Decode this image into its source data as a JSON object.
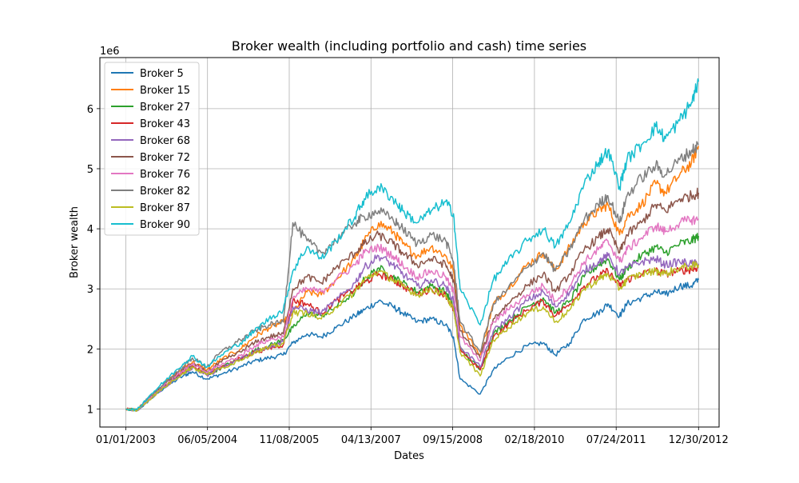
{
  "chart_data": {
    "type": "line",
    "title": "Broker wealth (including portfolio and cash) time series",
    "xlabel": "Dates",
    "ylabel": "Broker wealth",
    "y_scale_label": "1e6",
    "x_ticks": [
      "01/01/2003",
      "06/05/2004",
      "11/08/2005",
      "04/13/2007",
      "09/15/2008",
      "02/18/2010",
      "07/24/2011",
      "12/30/2012"
    ],
    "y_ticks": [
      "1",
      "2",
      "3",
      "4",
      "5",
      "6"
    ],
    "xlim": [
      "2002-07-20",
      "2013-05-10"
    ],
    "ylim": [
      700000,
      6850000
    ],
    "grid": true,
    "legend_position": "upper-left",
    "dates": [
      "2003-01-01",
      "2003-03-15",
      "2003-06-01",
      "2003-09-01",
      "2004-01-01",
      "2004-03-01",
      "2004-06-01",
      "2004-09-01",
      "2005-01-01",
      "2005-04-01",
      "2005-07-01",
      "2005-10-01",
      "2005-12-01",
      "2006-03-01",
      "2006-06-01",
      "2006-09-01",
      "2007-01-01",
      "2007-03-01",
      "2007-06-01",
      "2007-09-01",
      "2007-11-01",
      "2008-02-01",
      "2008-05-01",
      "2008-08-01",
      "2008-09-20",
      "2008-11-01",
      "2009-03-09",
      "2009-06-01",
      "2009-09-01",
      "2010-01-01",
      "2010-04-15",
      "2010-07-01",
      "2010-10-01",
      "2011-01-01",
      "2011-04-01",
      "2011-06-01",
      "2011-08-15",
      "2011-10-01",
      "2012-01-01",
      "2012-04-01",
      "2012-06-01",
      "2012-09-01",
      "2012-11-15",
      "2012-12-30"
    ],
    "series": [
      {
        "name": "Broker 5",
        "color": "#1f77b4",
        "values": [
          1000000,
          970000,
          1150000,
          1350000,
          1550000,
          1620000,
          1500000,
          1580000,
          1700000,
          1800000,
          1850000,
          1900000,
          2100000,
          2250000,
          2200000,
          2350000,
          2550000,
          2650000,
          2800000,
          2700000,
          2600000,
          2450000,
          2500000,
          2400000,
          2200000,
          1500000,
          1250000,
          1650000,
          1850000,
          2050000,
          2100000,
          1900000,
          2100000,
          2500000,
          2600000,
          2750000,
          2550000,
          2750000,
          2850000,
          2950000,
          2900000,
          3050000,
          3050000,
          3150000
        ]
      },
      {
        "name": "Broker 15",
        "color": "#ff7f0e",
        "values": [
          1000000,
          990000,
          1200000,
          1420000,
          1680000,
          1780000,
          1650000,
          1820000,
          2000000,
          2200000,
          2350000,
          2450000,
          2600000,
          2950000,
          2900000,
          3150000,
          3500000,
          3800000,
          4100000,
          3950000,
          3750000,
          3550000,
          3700000,
          3550000,
          3300000,
          2400000,
          1900000,
          2750000,
          3000000,
          3400000,
          3600000,
          3300000,
          3700000,
          4100000,
          4300000,
          4400000,
          3900000,
          4200000,
          4400000,
          4750000,
          4600000,
          4900000,
          5100000,
          5380000
        ]
      },
      {
        "name": "Broker 27",
        "color": "#2ca02c",
        "values": [
          1000000,
          980000,
          1180000,
          1380000,
          1600000,
          1700000,
          1570000,
          1690000,
          1830000,
          1970000,
          2050000,
          2150000,
          2350000,
          2600000,
          2550000,
          2700000,
          2950000,
          3150000,
          3350000,
          3200000,
          3100000,
          2950000,
          3050000,
          2950000,
          2700000,
          2000000,
          1650000,
          2250000,
          2450000,
          2700000,
          2850000,
          2600000,
          2800000,
          3200000,
          3400000,
          3500000,
          3150000,
          3350000,
          3550000,
          3700000,
          3600000,
          3750000,
          3800000,
          3880000
        ]
      },
      {
        "name": "Broker 43",
        "color": "#d62728",
        "values": [
          1000000,
          985000,
          1170000,
          1370000,
          1620000,
          1720000,
          1580000,
          1700000,
          1840000,
          1950000,
          2010000,
          2070000,
          2800000,
          2750000,
          2600000,
          2800000,
          3000000,
          3100000,
          3250000,
          3150000,
          3050000,
          2900000,
          3000000,
          2900000,
          2650000,
          2000000,
          1650000,
          2200000,
          2400000,
          2650000,
          2800000,
          2550000,
          2750000,
          3050000,
          3200000,
          3300000,
          3050000,
          3150000,
          3250000,
          3300000,
          3250000,
          3300000,
          3320000,
          3360000
        ]
      },
      {
        "name": "Broker 68",
        "color": "#9467bd",
        "values": [
          1000000,
          975000,
          1160000,
          1360000,
          1590000,
          1690000,
          1560000,
          1680000,
          1830000,
          1960000,
          2040000,
          2120000,
          2700000,
          2650000,
          2600000,
          2800000,
          3100000,
          3350000,
          3550000,
          3400000,
          3250000,
          3050000,
          3150000,
          3050000,
          2800000,
          2050000,
          1700000,
          2300000,
          2500000,
          2800000,
          2950000,
          2700000,
          2950000,
          3300000,
          3450000,
          3550000,
          3250000,
          3350000,
          3450000,
          3500000,
          3400000,
          3450000,
          3420000,
          3420000
        ]
      },
      {
        "name": "Broker 72",
        "color": "#8c564b",
        "values": [
          1000000,
          980000,
          1190000,
          1400000,
          1650000,
          1750000,
          1620000,
          1780000,
          1950000,
          2100000,
          2200000,
          2250000,
          3000000,
          3200000,
          3100000,
          3350000,
          3600000,
          3750000,
          3900000,
          3750000,
          3600000,
          3400000,
          3500000,
          3400000,
          3150000,
          2300000,
          1850000,
          2500000,
          2750000,
          3050000,
          3250000,
          2950000,
          3250000,
          3650000,
          3850000,
          4000000,
          3600000,
          3900000,
          4100000,
          4400000,
          4300000,
          4500000,
          4550000,
          4600000
        ]
      },
      {
        "name": "Broker 76",
        "color": "#e377c2",
        "values": [
          1000000,
          980000,
          1180000,
          1390000,
          1640000,
          1740000,
          1610000,
          1740000,
          1890000,
          2050000,
          2150000,
          2200000,
          2850000,
          3000000,
          2950000,
          3150000,
          3400000,
          3600000,
          3700000,
          3550000,
          3400000,
          3200000,
          3300000,
          3200000,
          2950000,
          2200000,
          1800000,
          2450000,
          2650000,
          2900000,
          3050000,
          2800000,
          3050000,
          3450000,
          3650000,
          3800000,
          3450000,
          3650000,
          3850000,
          4050000,
          3950000,
          4100000,
          4150000,
          4150000
        ]
      },
      {
        "name": "Broker 82",
        "color": "#7f7f7f",
        "values": [
          1000000,
          985000,
          1200000,
          1420000,
          1700000,
          1850000,
          1700000,
          1950000,
          2150000,
          2300000,
          2400000,
          2450000,
          4100000,
          3800000,
          3600000,
          3800000,
          4100000,
          4200000,
          4300000,
          4150000,
          4000000,
          3750000,
          3900000,
          3800000,
          3450000,
          2450000,
          1950000,
          2750000,
          3000000,
          3350000,
          3600000,
          3300000,
          3650000,
          4150000,
          4400000,
          4550000,
          4100000,
          4550000,
          4850000,
          5050000,
          4900000,
          5150000,
          5300000,
          5400000
        ]
      },
      {
        "name": "Broker 87",
        "color": "#bcbd22",
        "values": [
          1000000,
          975000,
          1160000,
          1360000,
          1600000,
          1700000,
          1570000,
          1680000,
          1820000,
          1950000,
          2020000,
          2090000,
          2600000,
          2600000,
          2500000,
          2700000,
          2950000,
          3150000,
          3300000,
          3150000,
          3050000,
          2900000,
          3000000,
          2900000,
          2650000,
          1950000,
          1550000,
          2150000,
          2350000,
          2600000,
          2700000,
          2450000,
          2650000,
          3000000,
          3150000,
          3250000,
          3000000,
          3150000,
          3250000,
          3300000,
          3250000,
          3350000,
          3380000,
          3400000
        ]
      },
      {
        "name": "Broker 90",
        "color": "#17becf",
        "values": [
          1000000,
          990000,
          1220000,
          1450000,
          1750000,
          1880000,
          1700000,
          1900000,
          2100000,
          2300000,
          2500000,
          2650000,
          3300000,
          3700000,
          3500000,
          3800000,
          4200000,
          4500000,
          4700000,
          4500000,
          4300000,
          4100000,
          4300000,
          4450000,
          4250000,
          3000000,
          2400000,
          3150000,
          3450000,
          3800000,
          4000000,
          3700000,
          4100000,
          4750000,
          5100000,
          5300000,
          4700000,
          5150000,
          5400000,
          5700000,
          5500000,
          5800000,
          6100000,
          6450000
        ]
      }
    ]
  }
}
